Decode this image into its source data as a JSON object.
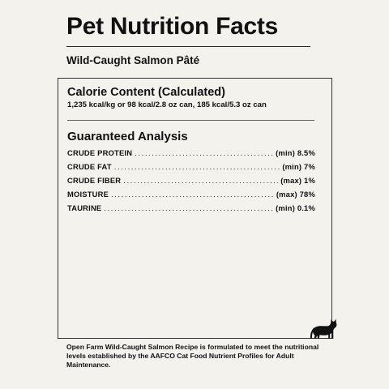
{
  "header": {
    "title": "Pet Nutrition Facts",
    "product_name": "Wild-Caught Salmon Pâté"
  },
  "calorie_content": {
    "heading": "Calorie Content (Calculated)",
    "text": "1,235 kcal/kg or 98 kcal/2.8 oz can, 185 kcal/5.3 oz can"
  },
  "guaranteed_analysis": {
    "heading": "Guaranteed Analysis",
    "rows": [
      {
        "name": "CRUDE PROTEIN",
        "value": "(min) 8.5%"
      },
      {
        "name": "CRUDE FAT",
        "value": "(min) 7%"
      },
      {
        "name": "CRUDE FIBER",
        "value": "(max) 1%"
      },
      {
        "name": "MOISTURE",
        "value": "(max) 78%"
      },
      {
        "name": "TAURINE",
        "value": "(min) 0.1%"
      }
    ]
  },
  "footnote": "Open Farm Wild-Caught Salmon Recipe is formulated to meet the nutritional levels established by the AAFCO Cat Food Nutrient Profiles for Adult Maintenance.",
  "icons": {
    "cat": "cat-icon"
  },
  "colors": {
    "background": "#f4f2ed",
    "text": "#111111"
  }
}
